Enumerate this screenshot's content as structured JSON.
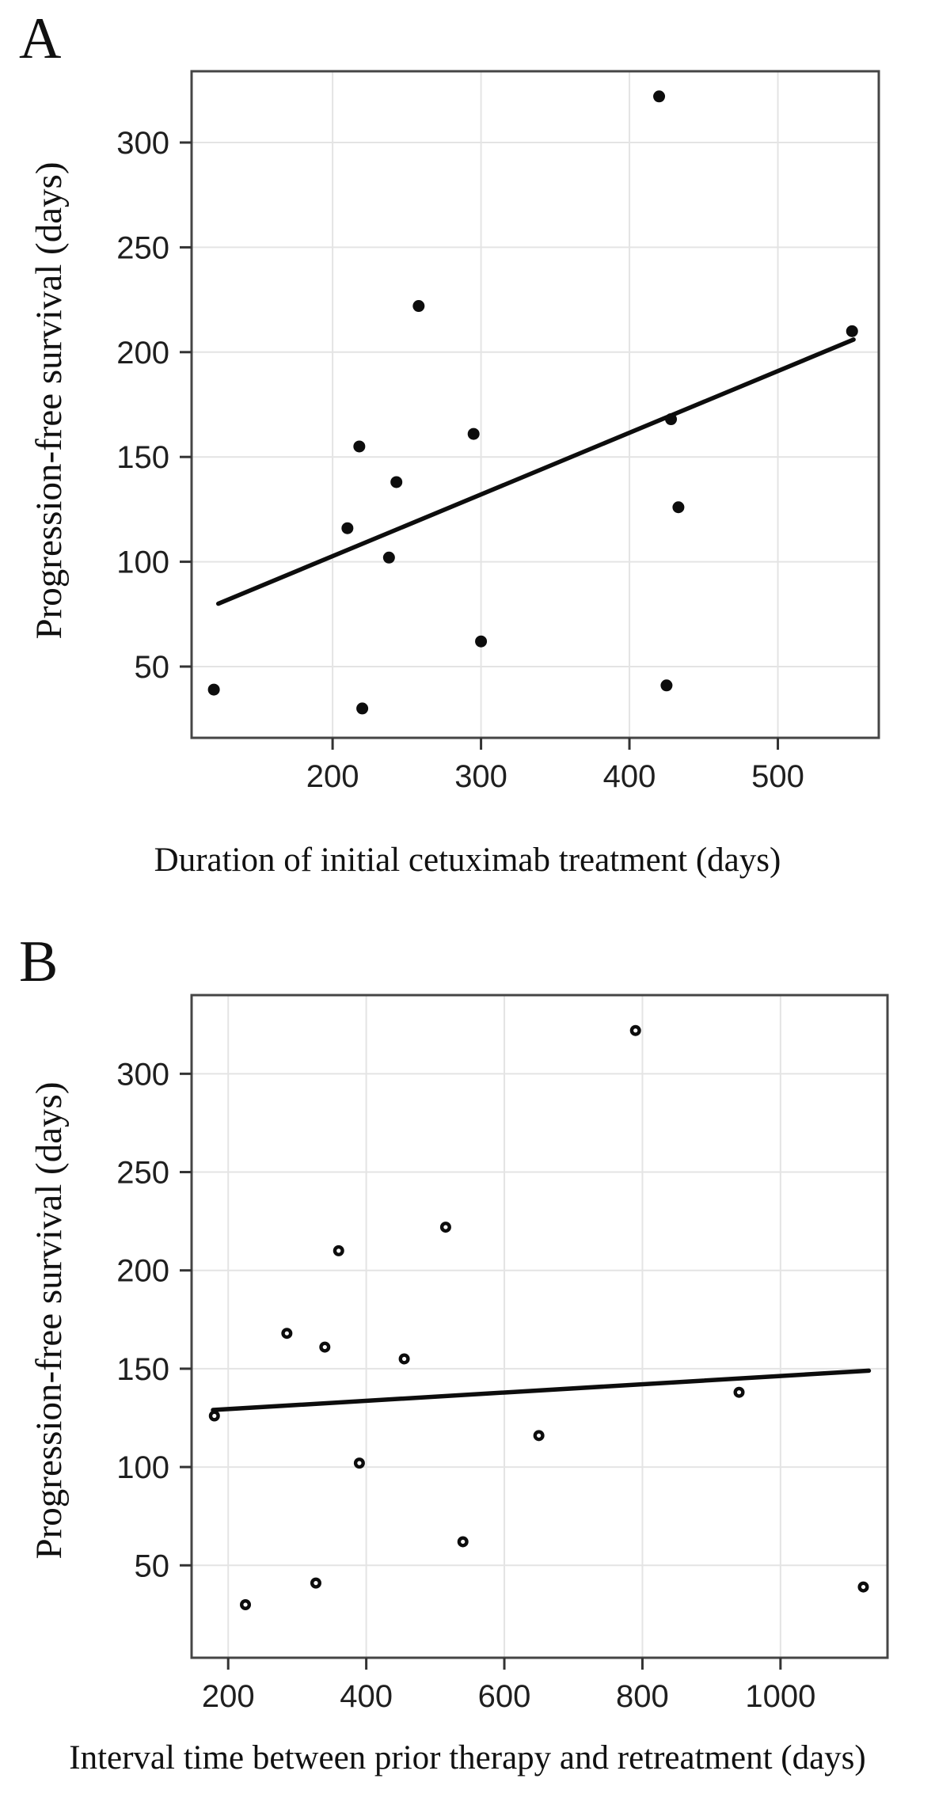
{
  "figure": {
    "background": "#ffffff",
    "panels": [
      {
        "letter": "A",
        "y_title": "Progression-free survival (days)",
        "x_title": "Duration of initial cetuximab treatment (days)"
      },
      {
        "letter": "B",
        "y_title": "Progression-free survival (days)",
        "x_title": "Interval time between prior therapy and retreatment (days)"
      }
    ],
    "colors": {
      "point": "#0d0d0d",
      "trend_line": "#0d0d0d",
      "grid": "#e4e4e4",
      "panel_border": "#454545",
      "tick_mark": "#333333",
      "tick_label": "#1f1f1f"
    }
  },
  "chart_data": [
    {
      "type": "scatter",
      "panel": "A",
      "xlabel": "Duration of initial cetuximab treatment (days)",
      "ylabel": "Progression-free survival (days)",
      "xlim": [
        105,
        568
      ],
      "ylim": [
        16,
        334
      ],
      "xticks": [
        200,
        300,
        400,
        500
      ],
      "yticks": [
        50,
        100,
        150,
        200,
        250,
        300
      ],
      "grid": true,
      "legend": false,
      "marker": "filled-circle",
      "points": [
        [
          120,
          39
        ],
        [
          220,
          30
        ],
        [
          210,
          116
        ],
        [
          218,
          155
        ],
        [
          238,
          102
        ],
        [
          243,
          138
        ],
        [
          258,
          222
        ],
        [
          295,
          161
        ],
        [
          300,
          62
        ],
        [
          420,
          322
        ],
        [
          428,
          168
        ],
        [
          433,
          126
        ],
        [
          425,
          41
        ],
        [
          550,
          210
        ]
      ],
      "trend_line": {
        "x1": 123,
        "y1": 80,
        "x2": 551,
        "y2": 206
      }
    },
    {
      "type": "scatter",
      "panel": "B",
      "xlabel": "Interval time between prior therapy and retreatment (days)",
      "ylabel": "Progression-free survival (days)",
      "xlim": [
        147,
        1155
      ],
      "ylim": [
        3,
        340
      ],
      "xticks": [
        200,
        400,
        600,
        800,
        1000
      ],
      "yticks": [
        50,
        100,
        150,
        200,
        250,
        300
      ],
      "grid": true,
      "legend": false,
      "marker": "open-circle",
      "points": [
        [
          180,
          126
        ],
        [
          225,
          30
        ],
        [
          285,
          168
        ],
        [
          327,
          41
        ],
        [
          340,
          161
        ],
        [
          360,
          210
        ],
        [
          390,
          102
        ],
        [
          455,
          155
        ],
        [
          515,
          222
        ],
        [
          540,
          62
        ],
        [
          650,
          116
        ],
        [
          790,
          322
        ],
        [
          940,
          138
        ],
        [
          1120,
          39
        ]
      ],
      "trend_line": {
        "x1": 178,
        "y1": 129,
        "x2": 1128,
        "y2": 149
      }
    }
  ]
}
